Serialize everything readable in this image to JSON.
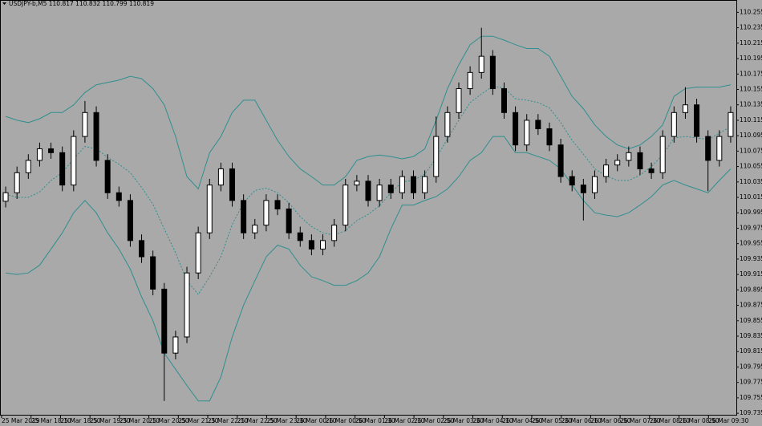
{
  "chart_data": {
    "type": "candlestick",
    "title": "USDJPY-b,M5  110.817 110.832 110.799 110.819",
    "x_labels": [
      "25 Mar 2019",
      "25 Mar 18:10",
      "25 Mar 18:50",
      "25 Mar 19:30",
      "25 Mar 20:10",
      "25 Mar 20:50",
      "25 Mar 21:30",
      "25 Mar 22:10",
      "25 Mar 22:50",
      "25 Mar 23:30",
      "26 Mar 00:10",
      "26 Mar 00:50",
      "26 Mar 01:30",
      "26 Mar 02:10",
      "26 Mar 02:50",
      "26 Mar 03:30",
      "26 Mar 04:10",
      "26 Mar 04:50",
      "26 Mar 05:30",
      "26 Mar 06:10",
      "26 Mar 06:50",
      "26 Mar 07:30",
      "26 Mar 08:10",
      "26 Mar 08:50",
      "26 Mar 09:30"
    ],
    "open": [
      110.01,
      110.021,
      110.047,
      110.063,
      110.078,
      110.073,
      110.031,
      110.094,
      110.125,
      110.063,
      110.021,
      110.011,
      109.959,
      109.938,
      109.896,
      109.813,
      109.834,
      109.917,
      109.969,
      110.031,
      110.052,
      110.011,
      109.969,
      109.979,
      110.011,
      110.0,
      109.969,
      109.959,
      109.948,
      109.959,
      109.979,
      110.031,
      110.036,
      110.011,
      110.031,
      110.021,
      110.042,
      110.021,
      110.042,
      110.094,
      110.125,
      110.156,
      110.177,
      110.198,
      110.156,
      110.125,
      110.083,
      110.115,
      110.104,
      110.083,
      110.042,
      110.031,
      110.021,
      110.042,
      110.057,
      110.063,
      110.073,
      110.052,
      110.047,
      110.094,
      110.125,
      110.135,
      110.094,
      110.063,
      110.094
    ],
    "high": [
      110.029,
      110.055,
      110.071,
      110.086,
      110.086,
      110.081,
      110.102,
      110.14,
      110.133,
      110.071,
      110.029,
      110.019,
      109.967,
      109.946,
      109.904,
      109.842,
      109.925,
      109.977,
      110.039,
      110.06,
      110.06,
      110.019,
      109.987,
      110.019,
      110.019,
      110.008,
      109.977,
      109.967,
      109.967,
      109.987,
      110.039,
      110.044,
      110.044,
      110.039,
      110.039,
      110.05,
      110.05,
      110.05,
      110.12,
      110.133,
      110.164,
      110.185,
      110.235,
      110.206,
      110.164,
      110.133,
      110.123,
      110.123,
      110.112,
      110.091,
      110.05,
      110.039,
      110.05,
      110.065,
      110.071,
      110.081,
      110.081,
      110.06,
      110.102,
      110.133,
      110.158,
      110.143,
      110.102,
      110.102,
      110.133
    ],
    "low": [
      110.002,
      110.013,
      110.039,
      110.055,
      110.065,
      110.023,
      110.023,
      110.086,
      110.055,
      110.013,
      110.003,
      109.951,
      109.93,
      109.888,
      109.751,
      109.805,
      109.826,
      109.909,
      109.961,
      110.023,
      110.003,
      109.961,
      109.961,
      109.971,
      109.992,
      109.961,
      109.951,
      109.94,
      109.94,
      109.951,
      109.971,
      110.023,
      110.003,
      110.003,
      110.013,
      110.013,
      110.013,
      110.013,
      110.034,
      110.086,
      110.117,
      110.148,
      110.169,
      110.148,
      110.117,
      110.075,
      110.075,
      110.096,
      110.075,
      110.034,
      110.023,
      109.985,
      110.013,
      110.034,
      110.049,
      110.055,
      110.044,
      110.039,
      110.039,
      110.086,
      110.117,
      110.086,
      110.023,
      110.055,
      110.086
    ],
    "close": [
      110.021,
      110.047,
      110.063,
      110.078,
      110.073,
      110.031,
      110.094,
      110.125,
      110.063,
      110.021,
      110.011,
      109.959,
      109.938,
      109.896,
      109.813,
      109.834,
      109.917,
      109.969,
      110.031,
      110.052,
      110.011,
      109.969,
      109.979,
      110.011,
      110.0,
      109.969,
      109.959,
      109.948,
      109.959,
      109.979,
      110.031,
      110.036,
      110.011,
      110.031,
      110.021,
      110.042,
      110.021,
      110.042,
      110.094,
      110.125,
      110.156,
      110.177,
      110.198,
      110.156,
      110.125,
      110.083,
      110.115,
      110.104,
      110.083,
      110.042,
      110.031,
      110.021,
      110.042,
      110.057,
      110.063,
      110.073,
      110.052,
      110.047,
      110.094,
      110.125,
      110.135,
      110.094,
      110.063,
      110.094,
      110.125
    ],
    "upper_band": [
      110.12,
      110.115,
      110.112,
      110.117,
      110.125,
      110.125,
      110.135,
      110.151,
      110.161,
      110.164,
      110.167,
      110.172,
      110.169,
      110.156,
      110.135,
      110.094,
      110.042,
      110.026,
      110.073,
      110.094,
      110.125,
      110.141,
      110.141,
      110.115,
      110.089,
      110.068,
      110.052,
      110.042,
      110.031,
      110.031,
      110.042,
      110.063,
      110.068,
      110.07,
      110.068,
      110.065,
      110.068,
      110.078,
      110.115,
      110.156,
      110.187,
      110.213,
      110.224,
      110.224,
      110.219,
      110.213,
      110.208,
      110.208,
      110.198,
      110.172,
      110.146,
      110.13,
      110.109,
      110.094,
      110.083,
      110.078,
      110.083,
      110.094,
      110.109,
      110.146,
      110.156,
      110.158,
      110.158,
      110.158,
      110.161
    ],
    "middle_band": [
      110.019,
      110.015,
      110.015,
      110.022,
      110.037,
      110.047,
      110.065,
      110.081,
      110.078,
      110.067,
      110.058,
      110.047,
      110.028,
      110.006,
      109.974,
      109.943,
      109.907,
      109.889,
      109.912,
      109.938,
      109.98,
      110.008,
      110.024,
      110.027,
      110.021,
      110.008,
      109.99,
      109.977,
      109.969,
      109.966,
      109.972,
      109.985,
      109.993,
      110.004,
      110.021,
      110.035,
      110.037,
      110.045,
      110.066,
      110.091,
      110.115,
      110.138,
      110.149,
      110.159,
      110.157,
      110.143,
      110.141,
      110.138,
      110.131,
      110.112,
      110.089,
      110.071,
      110.052,
      110.043,
      110.037,
      110.037,
      110.044,
      110.055,
      110.07,
      110.092,
      110.094,
      110.092,
      110.09,
      110.098,
      110.107
    ],
    "lower_band": [
      109.917,
      109.915,
      109.917,
      109.927,
      109.948,
      109.969,
      109.995,
      110.011,
      109.995,
      109.969,
      109.948,
      109.922,
      109.886,
      109.855,
      109.813,
      109.792,
      109.771,
      109.751,
      109.751,
      109.782,
      109.834,
      109.875,
      109.907,
      109.938,
      109.953,
      109.948,
      109.927,
      109.912,
      109.907,
      109.901,
      109.901,
      109.907,
      109.917,
      109.938,
      109.974,
      110.005,
      110.005,
      110.011,
      110.016,
      110.026,
      110.042,
      110.063,
      110.073,
      110.094,
      110.094,
      110.073,
      110.073,
      110.068,
      110.063,
      110.052,
      110.031,
      110.011,
      109.995,
      109.992,
      109.99,
      109.995,
      110.005,
      110.016,
      110.031,
      110.037,
      110.031,
      110.026,
      110.021,
      110.037,
      110.052
    ],
    "band_color": "#2f8f8f",
    "bull_color": "#ffffff",
    "bear_color": "#000000",
    "ylim": [
      109.732,
      110.271
    ],
    "yticks": [
      110.255,
      110.235,
      110.215,
      110.195,
      110.175,
      110.155,
      110.135,
      110.115,
      110.095,
      110.075,
      110.055,
      110.035,
      110.015,
      109.995,
      109.975,
      109.955,
      109.935,
      109.915,
      109.895,
      109.875,
      109.855,
      109.835,
      109.815,
      109.795,
      109.775,
      109.755,
      109.735
    ]
  }
}
